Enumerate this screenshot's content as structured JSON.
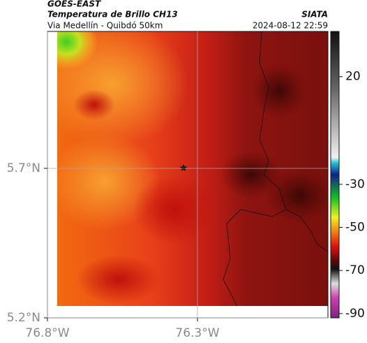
{
  "header": {
    "source": "GOES-EAST",
    "title": "Temperatura de Brillo CH13",
    "subtitle": "Via Medellín - Quibdó 50km",
    "org": "SIATA",
    "datetime": "2024-08-12 22:59"
  },
  "map": {
    "xlim": [
      -76.8,
      -75.865
    ],
    "ylim": [
      5.2,
      6.158
    ],
    "xticks": [
      {
        "value": -76.8,
        "label": "76.8°W"
      },
      {
        "value": -76.3,
        "label": "76.3°W"
      }
    ],
    "yticks": [
      {
        "value": 5.2,
        "label": "5.2°N"
      },
      {
        "value": 5.7,
        "label": "5.7°N"
      }
    ],
    "grid": true
  },
  "colorbar": {
    "lim": [
      -92,
      41
    ],
    "ticks": [
      20,
      -30,
      -50,
      -70,
      -90
    ]
  }
}
